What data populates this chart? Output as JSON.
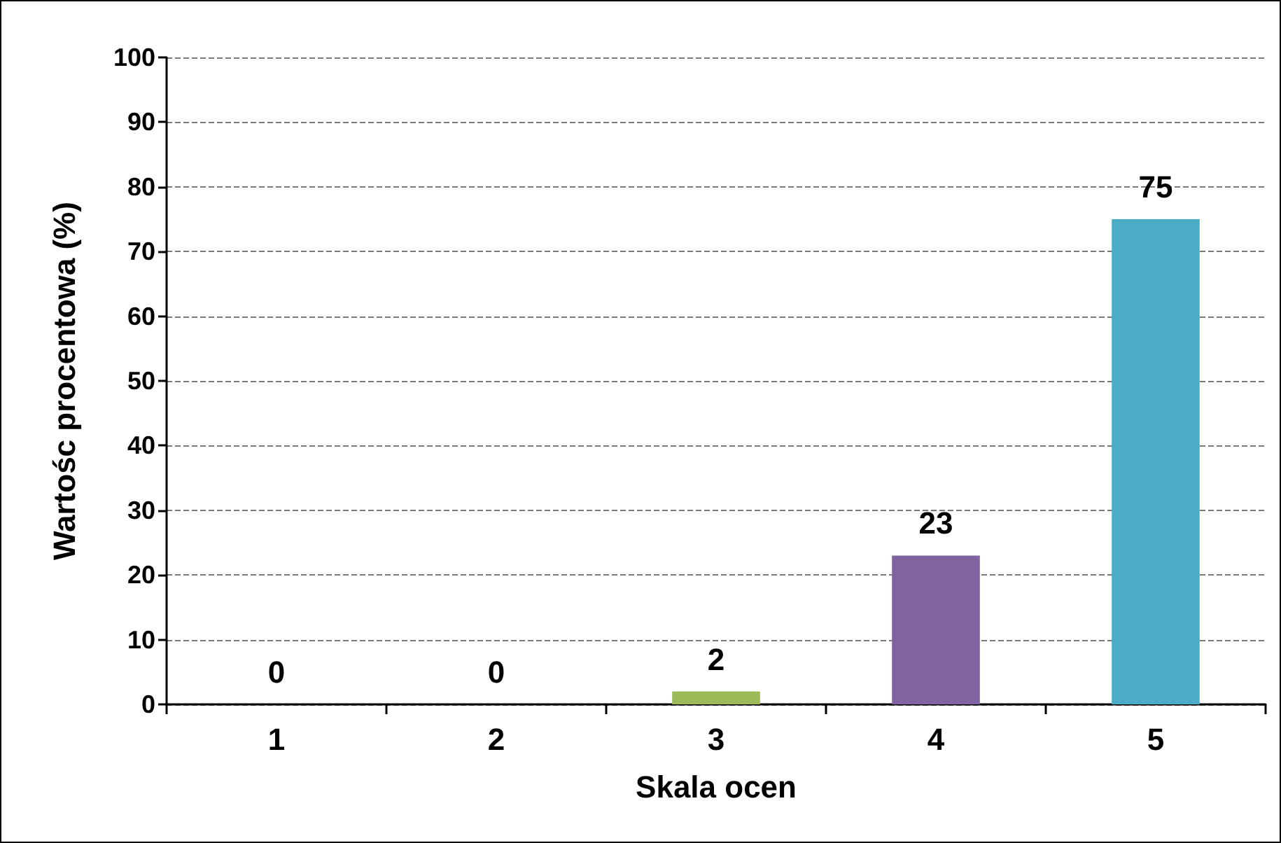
{
  "chart_data": {
    "type": "bar",
    "xlabel": "Skala ocen",
    "ylabel": "Wartośc procentowa (%)",
    "categories": [
      "1",
      "2",
      "3",
      "4",
      "5"
    ],
    "values": [
      0,
      0,
      2,
      23,
      75
    ],
    "colors": [
      "#4f81bd",
      "#c0504d",
      "#9bbb59",
      "#8064a2",
      "#4bacc6"
    ],
    "ylim": [
      0,
      100
    ],
    "yticks": [
      0,
      10,
      20,
      30,
      40,
      50,
      60,
      70,
      80,
      90,
      100
    ],
    "grid": "y",
    "data_labels": true
  }
}
